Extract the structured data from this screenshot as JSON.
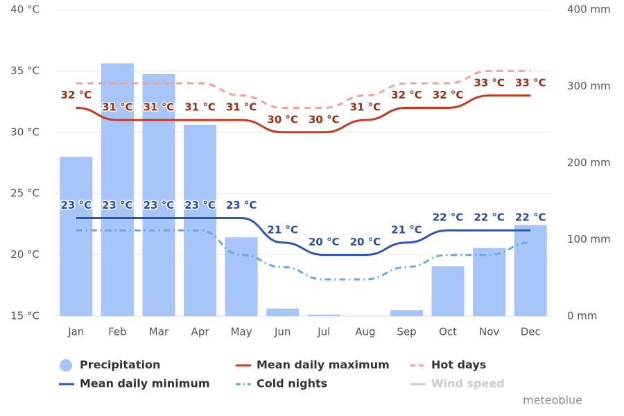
{
  "chart_data": {
    "type": "combo",
    "categories": [
      "Jan",
      "Feb",
      "Mar",
      "Apr",
      "May",
      "Jun",
      "Jul",
      "Aug",
      "Sep",
      "Oct",
      "Nov",
      "Dec"
    ],
    "ylim": [
      15,
      40
    ],
    "yticks": [
      {
        "value": 15,
        "label": "15 °C"
      },
      {
        "value": 20,
        "label": "20 °C"
      },
      {
        "value": 25,
        "label": "25 °C"
      },
      {
        "value": 30,
        "label": "30 °C"
      },
      {
        "value": 35,
        "label": "35 °C"
      },
      {
        "value": 40,
        "label": "40 °C"
      }
    ],
    "y2lim": [
      0,
      400
    ],
    "y2ticks": [
      {
        "value": 0,
        "label": "0 mm"
      },
      {
        "value": 100,
        "label": "100 mm"
      },
      {
        "value": 200,
        "label": "200 mm"
      },
      {
        "value": 300,
        "label": "300 mm"
      },
      {
        "value": 400,
        "label": "400 mm"
      }
    ],
    "grid": true,
    "series": [
      {
        "name": "Precipitation",
        "type": "bar",
        "axis": "y2",
        "color": "#a7c5f9",
        "values": [
          208,
          330,
          316,
          250,
          103,
          10,
          2,
          0,
          8,
          65,
          89,
          119
        ]
      },
      {
        "name": "Mean daily maximum",
        "type": "line",
        "color": "#c8391b",
        "label_color": "#9a2d0e",
        "values": [
          32,
          31,
          31,
          31,
          31,
          30,
          30,
          31,
          32,
          32,
          33,
          33
        ],
        "value_labels": [
          "32 °C",
          "31 °C",
          "31 °C",
          "31 °C",
          "31 °C",
          "30 °C",
          "30 °C",
          "31 °C",
          "32 °C",
          "32 °C",
          "33 °C",
          "33 °C"
        ]
      },
      {
        "name": "Hot days",
        "type": "line",
        "dash": "dashed",
        "color": "#f4a292",
        "values": [
          34,
          34,
          34,
          34,
          33,
          32,
          32,
          33,
          34,
          34,
          35,
          35
        ]
      },
      {
        "name": "Mean daily minimum",
        "type": "line",
        "color": "#2b55b8",
        "label_color": "#2a4d9e",
        "values": [
          23,
          23,
          23,
          23,
          23,
          21,
          20,
          20,
          21,
          22,
          22,
          22
        ],
        "value_labels": [
          "23 °C",
          "23 °C",
          "23 °C",
          "23 °C",
          "23 °C",
          "21 °C",
          "20 °C",
          "20 °C",
          "21 °C",
          "22 °C",
          "22 °C",
          "22 °C"
        ]
      },
      {
        "name": "Cold nights",
        "type": "line",
        "dash": "dashdot",
        "color": "#6ea8df",
        "values": [
          22,
          22,
          22,
          22,
          20,
          19,
          18,
          18,
          19,
          20,
          20,
          21
        ]
      },
      {
        "name": "Wind speed",
        "type": "line",
        "color": "#cccccc",
        "visible": false
      }
    ],
    "credit": "meteoblue"
  }
}
